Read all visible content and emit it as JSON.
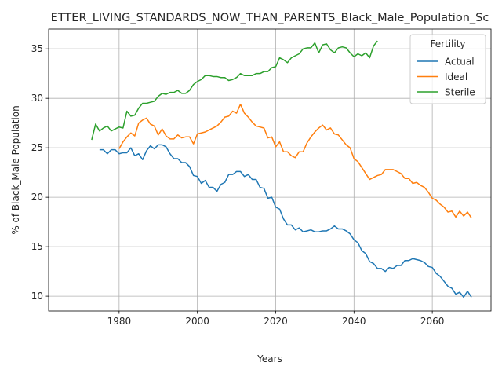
{
  "chart_data": {
    "type": "line",
    "title": "ETTER_LIVING_STANDARDS_NOW_THAN_PARENTS_Black_Male_Population_Sc",
    "xlabel": "Years",
    "ylabel": "% of Black_Male Population",
    "xlim": [
      1962,
      2075
    ],
    "ylim": [
      8.5,
      37.0
    ],
    "xticks": [
      1980,
      2000,
      2020,
      2040,
      2060
    ],
    "yticks": [
      10,
      15,
      20,
      25,
      30,
      35
    ],
    "grid": true,
    "legend": {
      "title": "Fertility",
      "placement": "top-right"
    },
    "series": [
      {
        "name": "Actual",
        "color": "#1f77b4",
        "x": [
          1975,
          1976,
          1977,
          1978,
          1979,
          1980,
          1981,
          1982,
          1983,
          1984,
          1985,
          1986,
          1987,
          1988,
          1989,
          1990,
          1991,
          1992,
          1993,
          1994,
          1995,
          1996,
          1997,
          1998,
          1999,
          2000,
          2001,
          2002,
          2003,
          2004,
          2005,
          2006,
          2007,
          2008,
          2009,
          2010,
          2011,
          2012,
          2013,
          2014,
          2015,
          2016,
          2017,
          2018,
          2019,
          2020,
          2021,
          2022,
          2023,
          2024,
          2025,
          2026,
          2027,
          2028,
          2029,
          2030,
          2031,
          2032,
          2033,
          2034,
          2035,
          2036,
          2037,
          2038,
          2039,
          2040,
          2041,
          2042,
          2043,
          2044,
          2045,
          2046,
          2047,
          2048,
          2049,
          2050,
          2051,
          2052,
          2053,
          2054,
          2055,
          2056,
          2057,
          2058,
          2059,
          2060,
          2061,
          2062,
          2063,
          2064,
          2065,
          2066,
          2067,
          2068,
          2069,
          2070
        ],
        "y": [
          24.8,
          24.8,
          24.4,
          24.8,
          24.8,
          24.4,
          24.5,
          24.5,
          25.0,
          24.2,
          24.4,
          23.8,
          24.7,
          25.2,
          24.9,
          25.3,
          25.3,
          25.1,
          24.4,
          23.9,
          23.9,
          23.5,
          23.5,
          23.1,
          22.2,
          22.1,
          21.4,
          21.7,
          21.0,
          21.0,
          20.6,
          21.3,
          21.5,
          22.3,
          22.3,
          22.6,
          22.6,
          22.1,
          22.3,
          21.8,
          21.8,
          21.0,
          20.9,
          19.9,
          20.0,
          19.0,
          18.8,
          17.8,
          17.2,
          17.2,
          16.7,
          16.9,
          16.5,
          16.6,
          16.7,
          16.5,
          16.5,
          16.6,
          16.6,
          16.8,
          17.1,
          16.8,
          16.8,
          16.6,
          16.3,
          15.7,
          15.4,
          14.6,
          14.3,
          13.5,
          13.3,
          12.8,
          12.8,
          12.5,
          12.9,
          12.8,
          13.1,
          13.1,
          13.6,
          13.6,
          13.8,
          13.7,
          13.6,
          13.4,
          13.0,
          12.9,
          12.3,
          12.0,
          11.5,
          11.0,
          10.8,
          10.2,
          10.4,
          9.9,
          10.5,
          9.9
        ]
      },
      {
        "name": "Ideal",
        "color": "#ff7f0e",
        "x": [
          1980,
          1981,
          1982,
          1983,
          1984,
          1985,
          1986,
          1987,
          1988,
          1989,
          1990,
          1991,
          1992,
          1993,
          1994,
          1995,
          1996,
          1997,
          1998,
          1999,
          2000,
          2001,
          2002,
          2003,
          2004,
          2005,
          2006,
          2007,
          2008,
          2009,
          2010,
          2011,
          2012,
          2013,
          2014,
          2015,
          2016,
          2017,
          2018,
          2019,
          2020,
          2021,
          2022,
          2023,
          2024,
          2025,
          2026,
          2027,
          2028,
          2029,
          2030,
          2031,
          2032,
          2033,
          2034,
          2035,
          2036,
          2037,
          2038,
          2039,
          2040,
          2041,
          2042,
          2043,
          2044,
          2045,
          2046,
          2047,
          2048,
          2049,
          2050,
          2051,
          2052,
          2053,
          2054,
          2055,
          2056,
          2057,
          2058,
          2059,
          2060,
          2061,
          2062,
          2063,
          2064,
          2065,
          2066,
          2067,
          2068,
          2069,
          2070
        ],
        "y": [
          24.9,
          25.6,
          26.1,
          26.5,
          26.2,
          27.5,
          27.8,
          28.0,
          27.4,
          27.2,
          26.3,
          26.9,
          26.2,
          25.9,
          25.9,
          26.3,
          26.0,
          26.1,
          26.1,
          25.4,
          26.4,
          26.5,
          26.6,
          26.8,
          27.0,
          27.2,
          27.6,
          28.1,
          28.2,
          28.7,
          28.5,
          29.4,
          28.5,
          28.1,
          27.6,
          27.2,
          27.1,
          27.0,
          26.0,
          26.1,
          25.1,
          25.6,
          24.6,
          24.6,
          24.2,
          24.0,
          24.6,
          24.6,
          25.5,
          26.1,
          26.6,
          27.0,
          27.3,
          26.8,
          27.0,
          26.4,
          26.3,
          25.8,
          25.3,
          25.0,
          23.9,
          23.6,
          23.0,
          22.4,
          21.8,
          22.0,
          22.2,
          22.3,
          22.8,
          22.8,
          22.8,
          22.6,
          22.4,
          21.9,
          21.9,
          21.4,
          21.5,
          21.2,
          21.0,
          20.5,
          19.9,
          19.7,
          19.3,
          19.0,
          18.5,
          18.6,
          18.0,
          18.6,
          18.1,
          18.5,
          17.9
        ]
      },
      {
        "name": "Sterile",
        "color": "#2ca02c",
        "x": [
          1973,
          1974,
          1975,
          1976,
          1977,
          1978,
          1979,
          1980,
          1981,
          1982,
          1983,
          1984,
          1985,
          1986,
          1987,
          1988,
          1989,
          1990,
          1991,
          1992,
          1993,
          1994,
          1995,
          1996,
          1997,
          1998,
          1999,
          2000,
          2001,
          2002,
          2003,
          2004,
          2005,
          2006,
          2007,
          2008,
          2009,
          2010,
          2011,
          2012,
          2013,
          2014,
          2015,
          2016,
          2017,
          2018,
          2019,
          2020,
          2021,
          2022,
          2023,
          2024,
          2025,
          2026,
          2027,
          2028,
          2029,
          2030,
          2031,
          2032,
          2033,
          2034,
          2035,
          2036,
          2037,
          2038,
          2039,
          2040,
          2041,
          2042,
          2043,
          2044,
          2045,
          2046
        ],
        "y": [
          25.8,
          27.4,
          26.7,
          27.0,
          27.2,
          26.7,
          26.9,
          27.1,
          27.0,
          28.7,
          28.2,
          28.3,
          29.0,
          29.5,
          29.5,
          29.6,
          29.7,
          30.2,
          30.5,
          30.4,
          30.6,
          30.6,
          30.8,
          30.5,
          30.5,
          30.8,
          31.4,
          31.7,
          31.9,
          32.3,
          32.3,
          32.2,
          32.2,
          32.1,
          32.1,
          31.8,
          31.9,
          32.1,
          32.5,
          32.3,
          32.3,
          32.3,
          32.5,
          32.5,
          32.7,
          32.7,
          33.1,
          33.2,
          34.1,
          33.9,
          33.6,
          34.1,
          34.3,
          34.5,
          35.0,
          35.1,
          35.1,
          35.6,
          34.6,
          35.4,
          35.5,
          34.9,
          34.6,
          35.1,
          35.2,
          35.1,
          34.6,
          34.2,
          34.5,
          34.3,
          34.6,
          34.1,
          35.3,
          35.8
        ]
      }
    ]
  }
}
